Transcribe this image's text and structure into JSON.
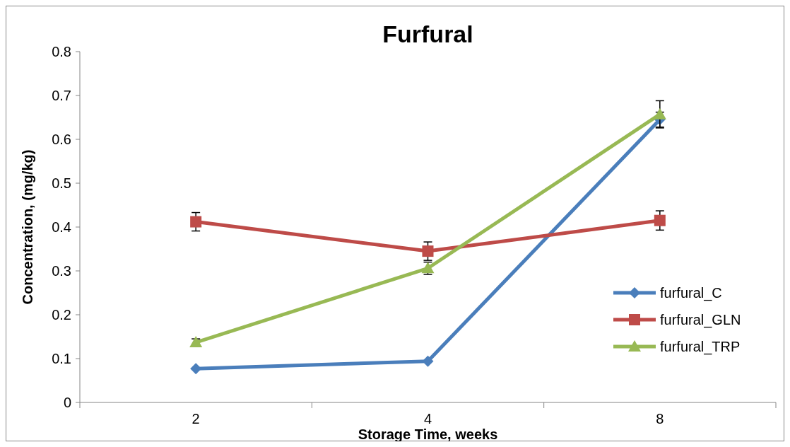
{
  "chart_data": {
    "type": "line",
    "title": "Furfural",
    "xlabel": "Storage Time, weeks",
    "ylabel": "Concentration, (mg/kg)",
    "categories": [
      "2",
      "4",
      "8"
    ],
    "series": [
      {
        "name": "furfural_C",
        "color": "#4a7ebb",
        "marker": "diamond",
        "values": [
          0.077,
          0.094,
          0.645
        ],
        "errors": [
          null,
          null,
          0.017
        ]
      },
      {
        "name": "furfural_GLN",
        "color": "#be4b48",
        "marker": "square",
        "values": [
          0.412,
          0.345,
          0.415
        ],
        "errors": [
          0.021,
          0.021,
          0.022
        ]
      },
      {
        "name": "furfural_TRP",
        "color": "#98b954",
        "marker": "triangle",
        "values": [
          0.137,
          0.306,
          0.657
        ],
        "errors": [
          0.008,
          0.014,
          0.031
        ]
      }
    ],
    "ylim": [
      0,
      0.8
    ],
    "yticks": [
      0,
      0.1,
      0.2,
      0.3,
      0.4,
      0.5,
      0.6,
      0.7,
      0.8
    ],
    "grid": false,
    "legend": "right",
    "line_style": "solid"
  }
}
